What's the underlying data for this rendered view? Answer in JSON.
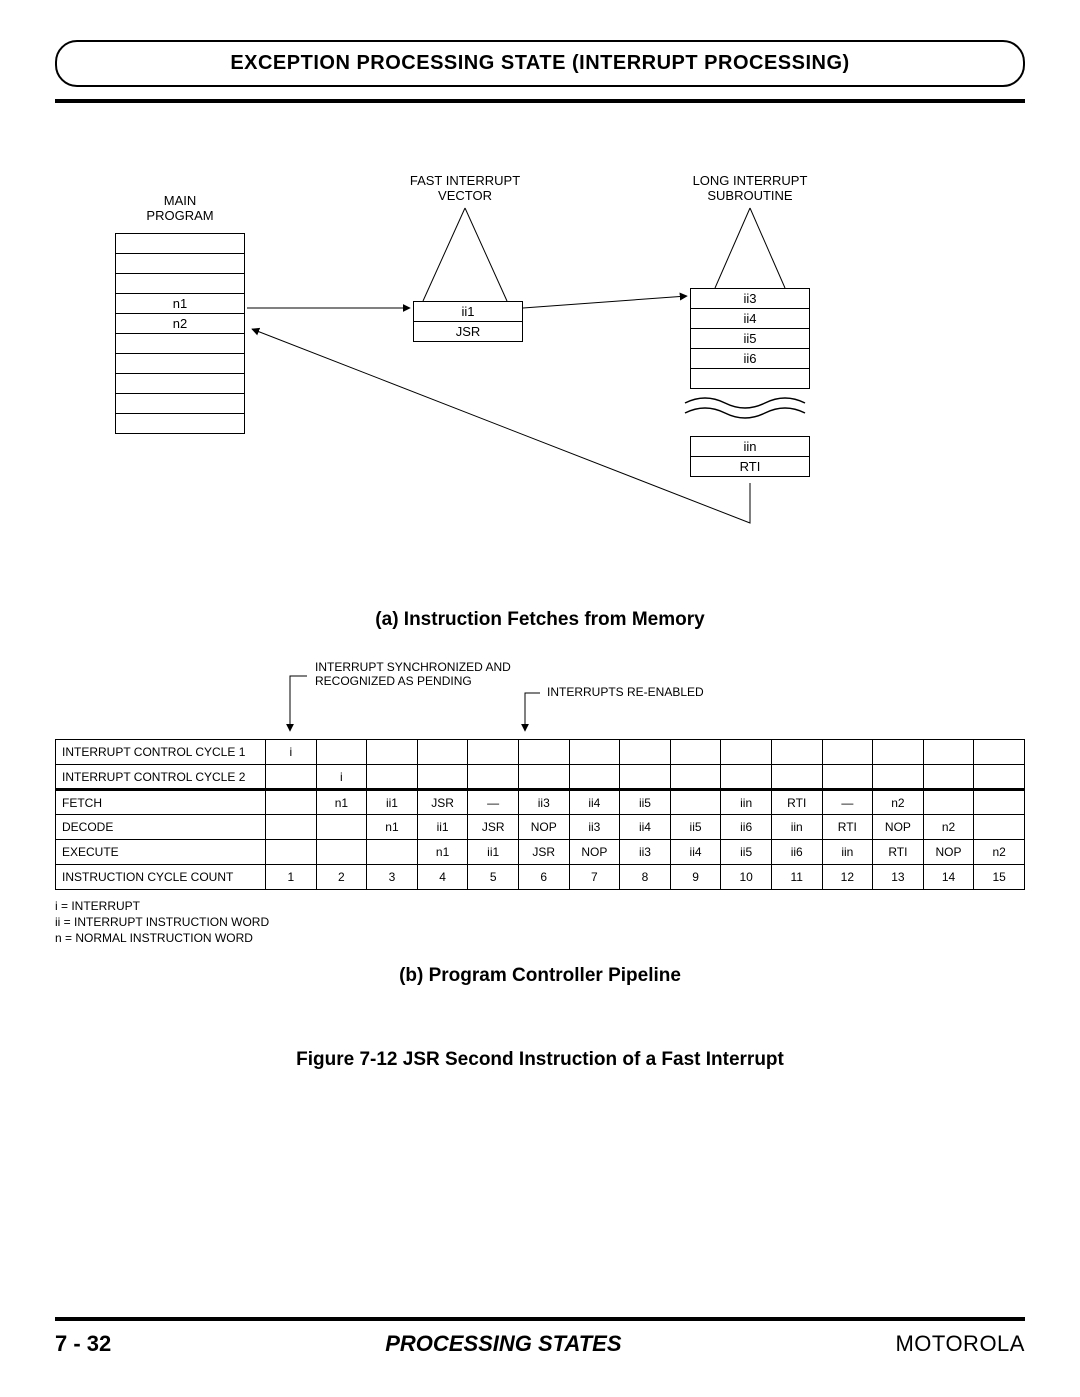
{
  "header": {
    "title": "EXCEPTION PROCESSING STATE (INTERRUPT PROCESSING)"
  },
  "figA": {
    "main_program_label": "MAIN\nPROGRAM",
    "fast_vector_label": "FAST INTERRUPT\nVECTOR",
    "long_sub_label": "LONG INTERRUPT\nSUBROUTINE",
    "main_rows": [
      "",
      "",
      "",
      "n1",
      "n2",
      "",
      "",
      "",
      "",
      ""
    ],
    "vector_rows": [
      "ii1",
      "JSR"
    ],
    "sub_rows_top": [
      "ii3",
      "ii4",
      "ii5",
      "ii6",
      ""
    ],
    "sub_rows_bot": [
      "iin",
      "RTI"
    ],
    "caption": "(a) Instruction Fetches from Memory"
  },
  "figB": {
    "note_sync": "INTERRUPT SYNCHRONIZED AND\nRECOGNIZED AS PENDING",
    "note_reenable": "INTERRUPTS RE-ENABLED",
    "rows": [
      {
        "label": "INTERRUPT CONTROL CYCLE 1",
        "cells": [
          "i",
          "",
          "",
          "",
          "",
          "",
          "",
          "",
          "",
          "",
          "",
          "",
          "",
          "",
          ""
        ]
      },
      {
        "label": "INTERRUPT CONTROL CYCLE 2",
        "cells": [
          "",
          "i",
          "",
          "",
          "",
          "",
          "",
          "",
          "",
          "",
          "",
          "",
          "",
          "",
          ""
        ]
      },
      {
        "label": "FETCH",
        "cells": [
          "",
          "n1",
          "ii1",
          "JSR",
          "—",
          "ii3",
          "ii4",
          "ii5",
          "",
          "iin",
          "RTI",
          "—",
          "n2",
          "",
          ""
        ]
      },
      {
        "label": "DECODE",
        "cells": [
          "",
          "",
          "n1",
          "ii1",
          "JSR",
          "NOP",
          "ii3",
          "ii4",
          "ii5",
          "ii6",
          "iin",
          "RTI",
          "NOP",
          "n2",
          ""
        ]
      },
      {
        "label": "EXECUTE",
        "cells": [
          "",
          "",
          "",
          "n1",
          "ii1",
          "JSR",
          "NOP",
          "ii3",
          "ii4",
          "ii5",
          "ii6",
          "iin",
          "RTI",
          "NOP",
          "n2"
        ]
      },
      {
        "label": "INSTRUCTION CYCLE COUNT",
        "cells": [
          "1",
          "2",
          "3",
          "4",
          "5",
          "6",
          "7",
          "8",
          "9",
          "10",
          "11",
          "12",
          "13",
          "14",
          "15"
        ]
      }
    ],
    "thick_before_row_index": 2,
    "legend": [
      "i   = INTERRUPT",
      "ii  = INTERRUPT INSTRUCTION WORD",
      "n  = NORMAL INSTRUCTION WORD"
    ],
    "caption": "(b) Program Controller Pipeline"
  },
  "figure_caption": "Figure  7-12  JSR Second Instruction of a Fast Interrupt",
  "footer": {
    "left": "7 - 32",
    "center": "PROCESSING STATES",
    "right": "MOTOROLA"
  },
  "colors": {
    "line": "#000000",
    "bg": "#ffffff"
  }
}
